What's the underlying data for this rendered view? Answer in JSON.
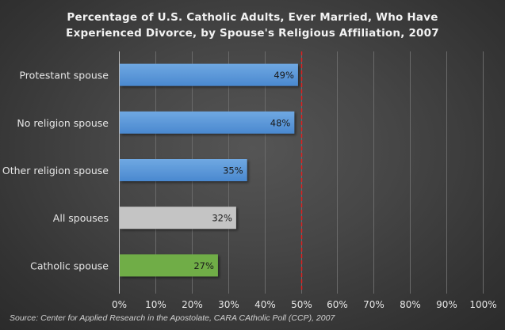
{
  "chart_data": {
    "type": "bar",
    "orientation": "horizontal",
    "title_lines": [
      "Percentage of U.S. Catholic Adults, Ever Married, Who Have",
      "Experienced Divorce, by Spouse's Religious Affiliation, 2007"
    ],
    "categories": [
      "Protestant spouse",
      "No religion spouse",
      "Other religion spouse",
      "All spouses",
      "Catholic spouse"
    ],
    "values": [
      49,
      48,
      35,
      32,
      27
    ],
    "data_labels": [
      "49%",
      "48%",
      "35%",
      "32%",
      "27%"
    ],
    "bar_colors": [
      "#5b9bd5",
      "#5b9bd5",
      "#5b9bd5",
      "#c4c4c4",
      "#70ad47"
    ],
    "xlim": [
      0,
      100
    ],
    "x_ticks": [
      0,
      10,
      20,
      30,
      40,
      50,
      60,
      70,
      80,
      90,
      100
    ],
    "x_tick_labels": [
      "0%",
      "10%",
      "20%",
      "30%",
      "40%",
      "50%",
      "60%",
      "70%",
      "80%",
      "90%",
      "100%"
    ],
    "reference_line": {
      "value": 50,
      "color": "#e02020",
      "style": "dashed"
    },
    "grid": true,
    "xlabel": "",
    "ylabel": "",
    "legend": "none",
    "source": "Source:  Center for Applied Research in the  Apostolate, CARA CAtholic Poll (CCP), 2007"
  }
}
